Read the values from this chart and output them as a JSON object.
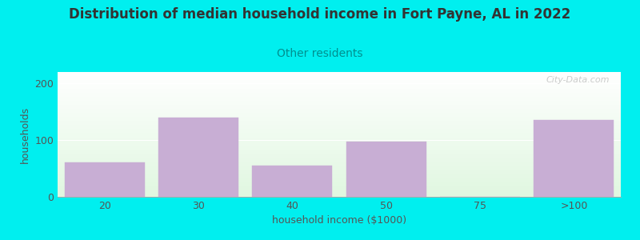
{
  "title": "Distribution of median household income in Fort Payne, AL in 2022",
  "subtitle": "Other residents",
  "xlabel": "household income ($1000)",
  "ylabel": "households",
  "categories": [
    "20",
    "30",
    "40",
    "50",
    "75",
    ">100"
  ],
  "values": [
    60,
    140,
    55,
    97,
    0,
    135
  ],
  "bar_color": "#c8aed4",
  "bar_edgecolor": "#c8aed4",
  "background_color": "#00efef",
  "plot_bg_top": "#f5fff5",
  "plot_bg_bottom": "#e8f8e8",
  "ylim": [
    0,
    220
  ],
  "yticks": [
    0,
    100,
    200
  ],
  "title_fontsize": 12,
  "subtitle_fontsize": 10,
  "title_color": "#333333",
  "subtitle_color": "#009090",
  "axis_label_fontsize": 9,
  "tick_fontsize": 9,
  "tick_color": "#555555",
  "watermark": "City-Data.com"
}
